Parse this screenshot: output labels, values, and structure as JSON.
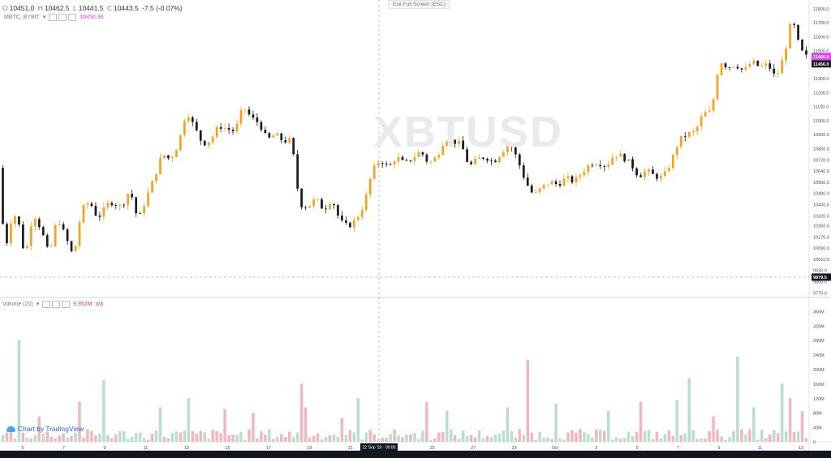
{
  "header": {
    "open_label": "O",
    "open": "10451.0",
    "high_label": "H",
    "high": "10462.5",
    "low_label": "L",
    "low": "10441.5",
    "close_label": "C",
    "close": "10443.5",
    "change": "-7.5 (-0.07%)",
    "series_name": ".MBTC, BYBIT",
    "series_dropdown": "▾",
    "series_value": "10456.36",
    "volume_name": "Volume (20)",
    "volume_dropdown": "▾",
    "volume_value": "9.952M",
    "volume_na": "n/a"
  },
  "fullscreen_pill": "Exit Full Screen (ESC)",
  "watermark": "XBTUSD",
  "tradingview_logo": "Chart by TradingView",
  "colors": {
    "up": "#f7a21b",
    "down": "#1c1c1c",
    "volume_up": "#b7dfc9",
    "volume_down": "#f0b8bd",
    "last_price_badge": "#1c1c1c",
    "mark_price_badge": "#e040fb",
    "crosshair_badge": "#131722"
  },
  "chart_data": [
    {
      "type": "candlestick",
      "title": "",
      "y_ticks": [
        "11800.0",
        "11700.0",
        "11600.0",
        "11500.0",
        "11400.0",
        "11300.0",
        "11200.0",
        "11100.0",
        "11000.0",
        "10900.0",
        "10800.0",
        "10720.0",
        "10640.0",
        "10560.0",
        "10480.0",
        "10400.0",
        "10320.0",
        "10250.0",
        "10170.0",
        "10090.0",
        "10010.0",
        "9930.0",
        "9850.0",
        "9770.0"
      ],
      "ylim": [
        9740,
        11860
      ],
      "x_ticks": [
        "5",
        "7",
        "9",
        "11",
        "13",
        "15",
        "17",
        "19",
        "21",
        "23",
        "25",
        "27",
        "29",
        "Oct",
        "3",
        "5",
        "7",
        "9",
        "11",
        "13"
      ],
      "crosshair_date": "22 Sep '20 · 09:00",
      "price_labels": {
        "mark": "11456.5",
        "last": "11456.0",
        "crosshair": "9879.5"
      },
      "crosshair_price": 9879.5,
      "path": [
        [
          0,
          10660
        ],
        [
          1.5,
          10060
        ],
        [
          3.5,
          10350
        ],
        [
          5,
          10250
        ],
        [
          6.5,
          10020
        ],
        [
          8.5,
          10340
        ],
        [
          10.5,
          10220
        ],
        [
          12.5,
          10030
        ],
        [
          14.5,
          10310
        ],
        [
          16.5,
          10170
        ],
        [
          18.5,
          10020
        ],
        [
          20.5,
          10360
        ],
        [
          22.5,
          10420
        ],
        [
          24.5,
          10300
        ],
        [
          27.5,
          10420
        ],
        [
          30.5,
          10380
        ],
        [
          32.5,
          10510
        ],
        [
          34.5,
          10280
        ],
        [
          36.5,
          10440
        ],
        [
          38.5,
          10590
        ],
        [
          40.5,
          10760
        ],
        [
          42.5,
          10720
        ],
        [
          44.5,
          10830
        ],
        [
          46.5,
          11070
        ],
        [
          48.5,
          10950
        ],
        [
          50.5,
          10830
        ],
        [
          52.5,
          10860
        ],
        [
          54.5,
          10960
        ],
        [
          56.5,
          10940
        ],
        [
          58.5,
          10920
        ],
        [
          60.5,
          11100
        ],
        [
          62.5,
          11020
        ],
        [
          64.5,
          10980
        ],
        [
          66.5,
          10860
        ],
        [
          68.5,
          10900
        ],
        [
          70.5,
          10850
        ],
        [
          72.5,
          10860
        ],
        [
          74.5,
          10400
        ],
        [
          76.5,
          10380
        ],
        [
          78.5,
          10440
        ],
        [
          80.5,
          10360
        ],
        [
          82.5,
          10440
        ],
        [
          84.5,
          10280
        ],
        [
          86.5,
          10240
        ],
        [
          88.5,
          10290
        ],
        [
          90.5,
          10400
        ],
        [
          92.5,
          10640
        ],
        [
          94.5,
          10720
        ],
        [
          96.5,
          10660
        ],
        [
          98.5,
          10740
        ],
        [
          100.5,
          10690
        ],
        [
          102.5,
          10730
        ],
        [
          104.5,
          10780
        ],
        [
          106.5,
          10690
        ],
        [
          108.5,
          10740
        ],
        [
          110.5,
          10870
        ],
        [
          112.5,
          10850
        ],
        [
          114.5,
          10830
        ],
        [
          116.5,
          10670
        ],
        [
          118.5,
          10720
        ],
        [
          120.5,
          10740
        ],
        [
          122.5,
          10700
        ],
        [
          124.5,
          10770
        ],
        [
          126.5,
          10840
        ],
        [
          128.5,
          10720
        ],
        [
          130.5,
          10560
        ],
        [
          132.5,
          10460
        ],
        [
          134.5,
          10520
        ],
        [
          136.5,
          10560
        ],
        [
          138.5,
          10540
        ],
        [
          140.5,
          10590
        ],
        [
          142.5,
          10560
        ],
        [
          144.5,
          10630
        ],
        [
          146.5,
          10690
        ],
        [
          148.5,
          10700
        ],
        [
          150.5,
          10670
        ],
        [
          152.5,
          10760
        ],
        [
          154.5,
          10740
        ],
        [
          156.5,
          10690
        ],
        [
          158.5,
          10600
        ],
        [
          160.5,
          10640
        ],
        [
          162.5,
          10600
        ],
        [
          164.5,
          10590
        ],
        [
          166.5,
          10700
        ],
        [
          168.5,
          10860
        ],
        [
          170.5,
          10900
        ],
        [
          172.5,
          10920
        ],
        [
          174.5,
          11050
        ],
        [
          176.5,
          11060
        ],
        [
          178.5,
          11430
        ],
        [
          180.5,
          11380
        ],
        [
          182.5,
          11400
        ],
        [
          184.5,
          11350
        ],
        [
          186.5,
          11420
        ],
        [
          188.5,
          11380
        ],
        [
          190.5,
          11400
        ],
        [
          192.5,
          11300
        ],
        [
          194.5,
          11460
        ],
        [
          196.5,
          11740
        ],
        [
          197.5,
          11600
        ],
        [
          198.5,
          11520
        ],
        [
          199.5,
          11456
        ]
      ],
      "n_candles": 200,
      "date_start": "4 Sep 2020",
      "date_end": "13 Oct 2020"
    },
    {
      "type": "bar",
      "title": "Volume (20)",
      "y_ticks": [
        "360M",
        "320M",
        "280M",
        "240M",
        "200M",
        "160M",
        "120M",
        "80M",
        "40M",
        "0"
      ],
      "ylim": [
        0,
        380
      ],
      "unit": "M",
      "spikes": [
        {
          "i": 4,
          "v": 280,
          "up": true
        },
        {
          "i": 9,
          "v": 70,
          "up": false
        },
        {
          "i": 19,
          "v": 110,
          "up": false
        },
        {
          "i": 25,
          "v": 170,
          "up": true
        },
        {
          "i": 39,
          "v": 95,
          "up": true
        },
        {
          "i": 46,
          "v": 120,
          "up": true
        },
        {
          "i": 55,
          "v": 90,
          "up": false
        },
        {
          "i": 62,
          "v": 80,
          "up": false
        },
        {
          "i": 74,
          "v": 160,
          "up": false
        },
        {
          "i": 75,
          "v": 95,
          "up": false
        },
        {
          "i": 84,
          "v": 65,
          "up": false
        },
        {
          "i": 88,
          "v": 120,
          "up": true
        },
        {
          "i": 105,
          "v": 110,
          "up": false
        },
        {
          "i": 110,
          "v": 85,
          "up": true
        },
        {
          "i": 125,
          "v": 95,
          "up": true
        },
        {
          "i": 130,
          "v": 225,
          "up": false
        },
        {
          "i": 137,
          "v": 105,
          "up": true
        },
        {
          "i": 150,
          "v": 85,
          "up": true
        },
        {
          "i": 158,
          "v": 110,
          "up": false
        },
        {
          "i": 167,
          "v": 115,
          "up": true
        },
        {
          "i": 170,
          "v": 175,
          "up": true
        },
        {
          "i": 176,
          "v": 70,
          "up": false
        },
        {
          "i": 182,
          "v": 235,
          "up": true
        },
        {
          "i": 186,
          "v": 95,
          "up": true
        },
        {
          "i": 193,
          "v": 160,
          "up": true
        },
        {
          "i": 195,
          "v": 120,
          "up": false
        },
        {
          "i": 198,
          "v": 85,
          "up": false
        }
      ],
      "base_volume_range": [
        5,
        35
      ],
      "crosshair_value": null
    }
  ]
}
